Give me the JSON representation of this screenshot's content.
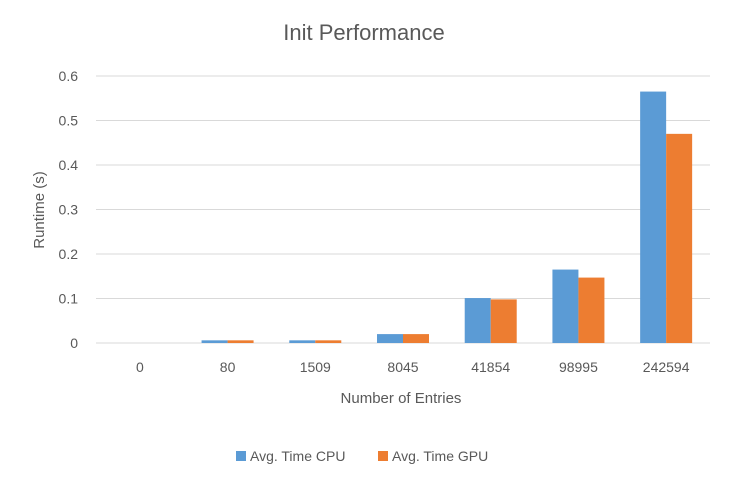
{
  "chart_data": {
    "type": "bar",
    "title": "Init Performance",
    "xlabel": "Number of Entries",
    "ylabel": "Runtime (s)",
    "categories": [
      "0",
      "80",
      "1509",
      "8045",
      "41854",
      "98995",
      "242594"
    ],
    "series": [
      {
        "name": "Avg. Time CPU",
        "color": "#5b9bd5",
        "values": [
          0,
          0.006,
          0.006,
          0.02,
          0.101,
          0.165,
          0.565
        ]
      },
      {
        "name": "Avg. Time GPU",
        "color": "#ed7d31",
        "values": [
          0,
          0.006,
          0.006,
          0.02,
          0.098,
          0.147,
          0.47
        ]
      }
    ],
    "ylim": [
      0,
      0.6
    ],
    "yticks": [
      "0",
      "0.1",
      "0.2",
      "0.3",
      "0.4",
      "0.5",
      "0.6"
    ],
    "grid": true,
    "legend": "bottom",
    "gridline_color": "#d9d9d9"
  }
}
